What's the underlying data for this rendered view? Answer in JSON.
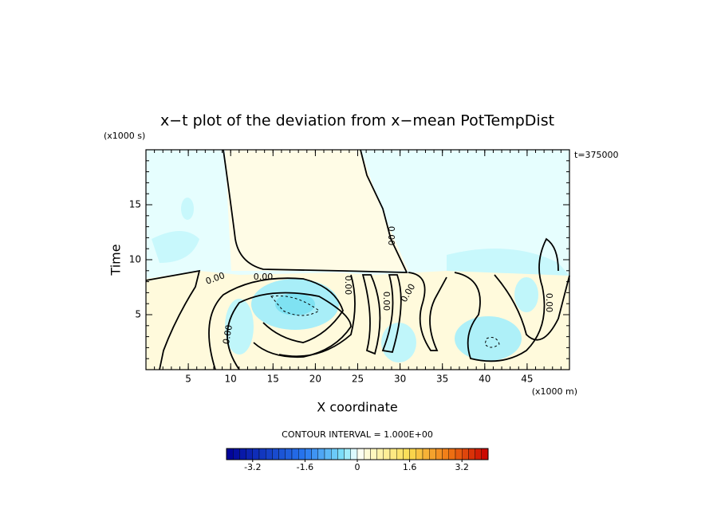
{
  "chart_data": {
    "type": "contour",
    "title": "x−t plot of the deviation from x−mean PotTempDist",
    "y_unit": "(x1000 s)",
    "time_note": "t=375000",
    "ylabel": "Time",
    "xlabel": "X coordinate",
    "x_unit": "(x1000 m)",
    "xlim": [
      0,
      50
    ],
    "xticks": [
      5,
      10,
      15,
      20,
      25,
      30,
      35,
      40,
      45
    ],
    "xminor_step": 1,
    "ylim": [
      0,
      20
    ],
    "yticks": [
      5,
      10,
      15
    ],
    "yminor_step": 1,
    "contour_labels": [
      "0.00",
      "0.00",
      "0.00",
      "0.00",
      "0.00",
      "0.00",
      "0.00",
      "0.00"
    ],
    "colorbar": {
      "title": "CONTOUR INTERVAL = 1.000E+00",
      "range": [
        -4,
        4
      ],
      "step": 0.2,
      "ticks": [
        -3.2,
        -1.6,
        0,
        1.6,
        3.2
      ]
    }
  }
}
